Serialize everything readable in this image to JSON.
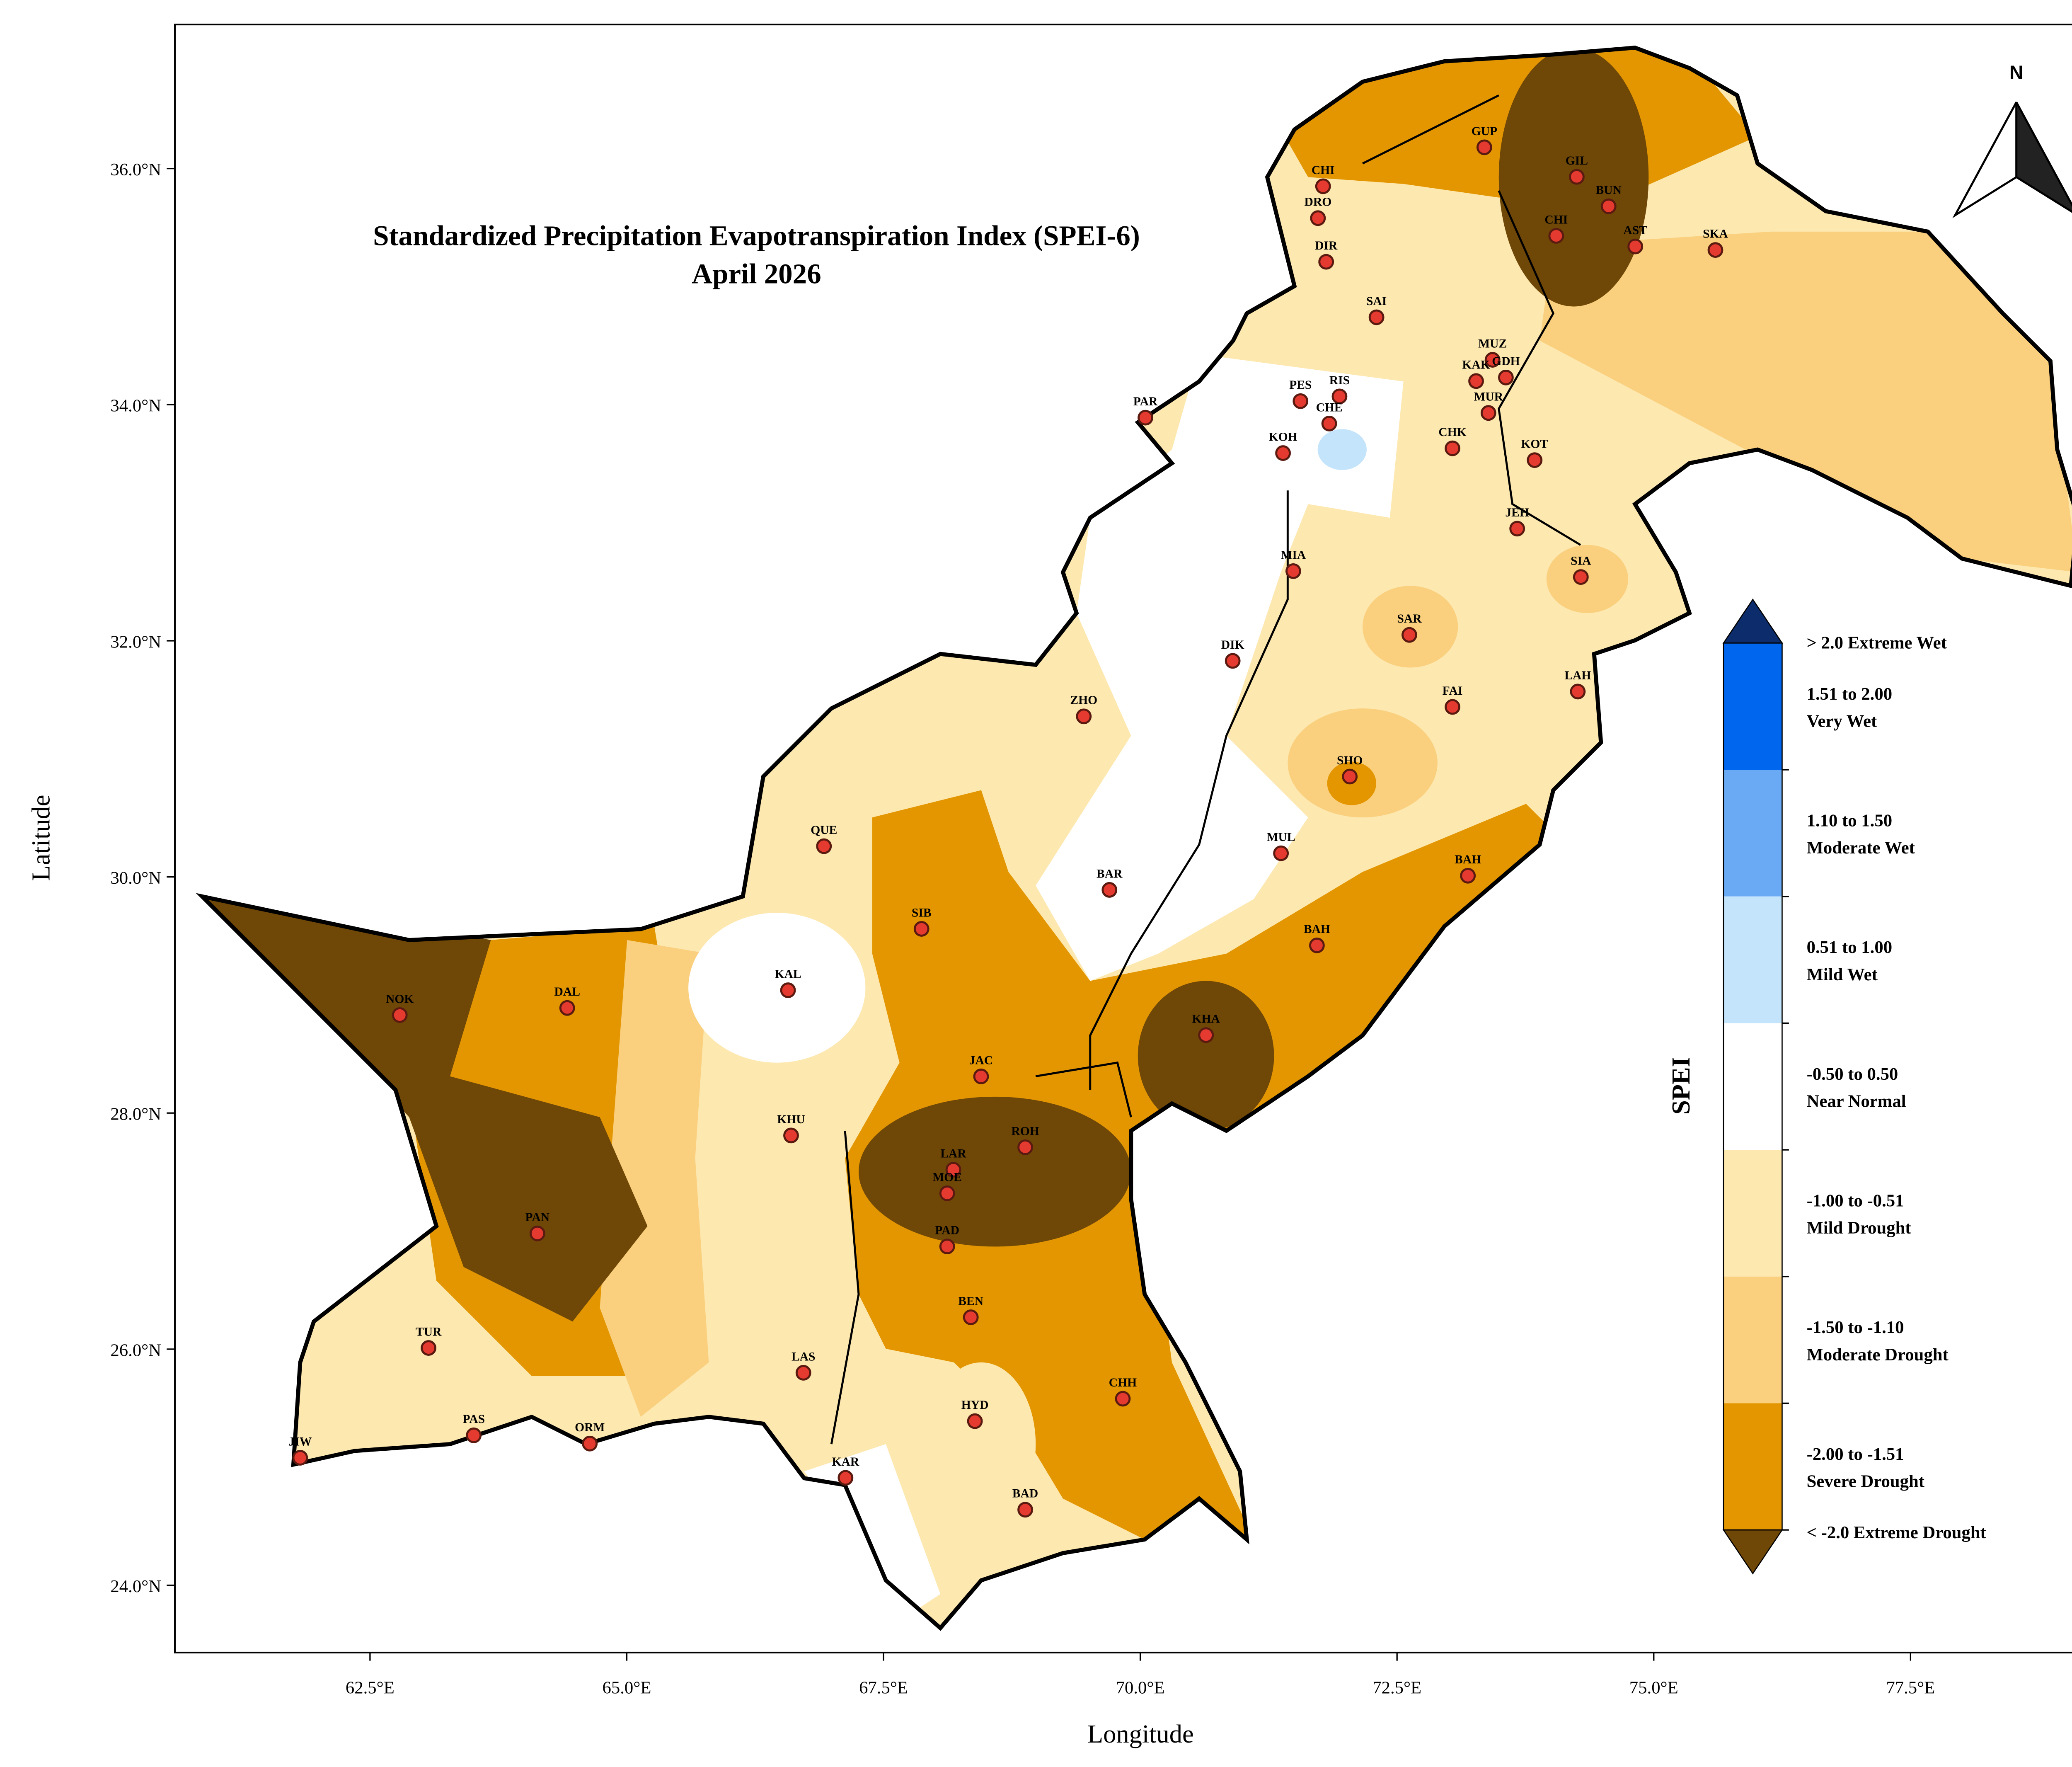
{
  "chart_data": {
    "type": "map",
    "title": "Standardized Precipitation Evapotranspiration Index (SPEI-6)",
    "subtitle": "April 2026",
    "x_label": "Longitude",
    "y_label": "Latitude",
    "xlim": [
      60.6,
      79.26
    ],
    "ylim": [
      23.43,
      37.22
    ],
    "xticks": [
      {
        "value": 62.5,
        "label": "62.5°E"
      },
      {
        "value": 65,
        "label": "65.0°E"
      },
      {
        "value": 67.5,
        "label": "67.5°E"
      },
      {
        "value": 70,
        "label": "70.0°E"
      },
      {
        "value": 72.5,
        "label": "72.5°E"
      },
      {
        "value": 75,
        "label": "75.0°E"
      },
      {
        "value": 77.5,
        "label": "77.5°E"
      }
    ],
    "yticks": [
      {
        "value": 24,
        "label": "24.0°N"
      },
      {
        "value": 26,
        "label": "26.0°N"
      },
      {
        "value": 28,
        "label": "28.0°N"
      },
      {
        "value": 30,
        "label": "30.0°N"
      },
      {
        "value": 32,
        "label": "32.0°N"
      },
      {
        "value": 34,
        "label": "34.0°N"
      },
      {
        "value": 36,
        "label": "36.0°N"
      }
    ],
    "north_label": "N",
    "stations": [
      {
        "name": "CHI",
        "lon": 71.78,
        "lat": 35.85
      },
      {
        "name": "DRO",
        "lon": 71.73,
        "lat": 35.58
      },
      {
        "name": "DIR",
        "lon": 71.81,
        "lat": 35.21
      },
      {
        "name": "GUP",
        "lon": 73.35,
        "lat": 36.18
      },
      {
        "name": "GIL",
        "lon": 74.25,
        "lat": 35.93
      },
      {
        "name": "BUN",
        "lon": 74.56,
        "lat": 35.68
      },
      {
        "name": "CHI",
        "lon": 74.05,
        "lat": 35.43
      },
      {
        "name": "AST",
        "lon": 74.82,
        "lat": 35.34
      },
      {
        "name": "SKA",
        "lon": 75.6,
        "lat": 35.31
      },
      {
        "name": "SAI",
        "lon": 72.3,
        "lat": 34.74
      },
      {
        "name": "MUZ",
        "lon": 73.43,
        "lat": 34.38
      },
      {
        "name": "GDH",
        "lon": 73.56,
        "lat": 34.23
      },
      {
        "name": "KAK",
        "lon": 73.27,
        "lat": 34.2
      },
      {
        "name": "MUR",
        "lon": 73.39,
        "lat": 33.93
      },
      {
        "name": "CHK",
        "lon": 73.04,
        "lat": 33.63
      },
      {
        "name": "KOT",
        "lon": 73.84,
        "lat": 33.53
      },
      {
        "name": "PES",
        "lon": 71.56,
        "lat": 34.03
      },
      {
        "name": "RIS",
        "lon": 71.94,
        "lat": 34.07
      },
      {
        "name": "CHE",
        "lon": 71.84,
        "lat": 33.84
      },
      {
        "name": "KOH",
        "lon": 71.39,
        "lat": 33.59
      },
      {
        "name": "PAR",
        "lon": 70.05,
        "lat": 33.89
      },
      {
        "name": "JEH",
        "lon": 73.67,
        "lat": 32.95
      },
      {
        "name": "MIA",
        "lon": 71.49,
        "lat": 32.59
      },
      {
        "name": "SIA",
        "lon": 74.29,
        "lat": 32.54
      },
      {
        "name": "SAR",
        "lon": 72.62,
        "lat": 32.05
      },
      {
        "name": "DIK",
        "lon": 70.9,
        "lat": 31.83
      },
      {
        "name": "FAI",
        "lon": 73.04,
        "lat": 31.44
      },
      {
        "name": "LAH",
        "lon": 74.26,
        "lat": 31.57
      },
      {
        "name": "ZHO",
        "lon": 69.45,
        "lat": 31.36
      },
      {
        "name": "SHO",
        "lon": 72.04,
        "lat": 30.85
      },
      {
        "name": "QUE",
        "lon": 66.92,
        "lat": 30.26
      },
      {
        "name": "MUL",
        "lon": 71.37,
        "lat": 30.2
      },
      {
        "name": "BAH",
        "lon": 73.19,
        "lat": 30.01
      },
      {
        "name": "BAR",
        "lon": 69.7,
        "lat": 29.89
      },
      {
        "name": "SIB",
        "lon": 67.87,
        "lat": 29.56
      },
      {
        "name": "BAH",
        "lon": 71.72,
        "lat": 29.42
      },
      {
        "name": "KAL",
        "lon": 66.57,
        "lat": 29.04
      },
      {
        "name": "NOK",
        "lon": 62.79,
        "lat": 28.83
      },
      {
        "name": "DAL",
        "lon": 64.42,
        "lat": 28.89
      },
      {
        "name": "KHA",
        "lon": 70.64,
        "lat": 28.66
      },
      {
        "name": "JAC",
        "lon": 68.45,
        "lat": 28.31
      },
      {
        "name": "KHU",
        "lon": 66.6,
        "lat": 27.81
      },
      {
        "name": "ROH",
        "lon": 68.88,
        "lat": 27.71
      },
      {
        "name": "LAR",
        "lon": 68.18,
        "lat": 27.52
      },
      {
        "name": "MOE",
        "lon": 68.12,
        "lat": 27.32
      },
      {
        "name": "PAN",
        "lon": 64.13,
        "lat": 26.98
      },
      {
        "name": "PAD",
        "lon": 68.12,
        "lat": 26.87
      },
      {
        "name": "BEN",
        "lon": 68.35,
        "lat": 26.27
      },
      {
        "name": "TUR",
        "lon": 63.07,
        "lat": 26.01
      },
      {
        "name": "LAS",
        "lon": 66.72,
        "lat": 25.8
      },
      {
        "name": "CHH",
        "lon": 69.83,
        "lat": 25.58
      },
      {
        "name": "HYD",
        "lon": 68.39,
        "lat": 25.39
      },
      {
        "name": "PAS",
        "lon": 63.51,
        "lat": 25.27
      },
      {
        "name": "ORM",
        "lon": 64.64,
        "lat": 25.2
      },
      {
        "name": "JIW",
        "lon": 61.82,
        "lat": 25.08
      },
      {
        "name": "KAR",
        "lon": 67.13,
        "lat": 24.91
      },
      {
        "name": "BAD",
        "lon": 68.88,
        "lat": 24.64
      }
    ],
    "legend": {
      "title": "SPEI",
      "items": [
        {
          "shape": "triangle-up",
          "color": "#0d2c6c",
          "lines": [
            "> 2.0 Extreme Wet"
          ]
        },
        {
          "shape": "rect",
          "color": "#0066ee",
          "lines": [
            "1.51 to 2.00",
            "Very Wet"
          ]
        },
        {
          "shape": "rect",
          "color": "#6aaaf5",
          "lines": [
            "1.10 to 1.50",
            "Moderate Wet"
          ]
        },
        {
          "shape": "rect",
          "color": "#c4e4fb",
          "lines": [
            "0.51 to 1.00",
            "Mild Wet"
          ]
        },
        {
          "shape": "rect",
          "color": "#ffffff",
          "lines": [
            "-0.50 to 0.50",
            "Near Normal"
          ]
        },
        {
          "shape": "rect",
          "color": "#fde8b0",
          "lines": [
            "-1.00 to -0.51",
            "Mild Drought"
          ]
        },
        {
          "shape": "rect",
          "color": "#fad07e",
          "lines": [
            "-1.50 to -1.10",
            "Moderate Drought"
          ]
        },
        {
          "shape": "rect",
          "color": "#e39600",
          "lines": [
            "-2.00 to -1.51",
            "Severe Drought"
          ]
        },
        {
          "shape": "triangle-down",
          "color": "#6f4707",
          "lines": [
            "< -2.0 Extreme Drought"
          ]
        }
      ]
    }
  }
}
